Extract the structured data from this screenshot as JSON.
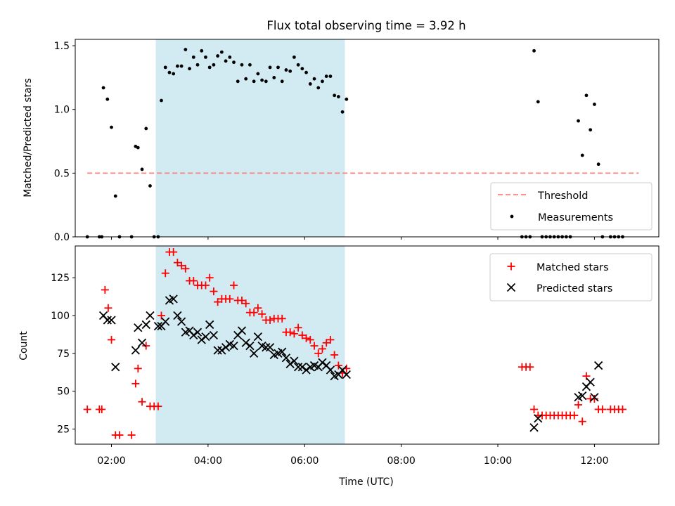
{
  "figure": {
    "title": "Flux total observing time = 3.92 h",
    "xlabel": "Time (UTC)"
  },
  "colors": {
    "shade": "#add8e6",
    "threshold": "#ff7f7f",
    "measurements": "#000000",
    "matched": "#ff0000",
    "predicted": "#000000"
  },
  "chart_data": [
    {
      "type": "scatter",
      "panel": "top",
      "ylabel": "Matched/Predicted stars",
      "xlim": [
        "01:15",
        "13:20"
      ],
      "ylim": [
        0,
        1.55
      ],
      "yticks": [
        0.0,
        0.5,
        1.0,
        1.5
      ],
      "ytick_labels": [
        "0.0",
        "0.5",
        "1.0",
        "1.5"
      ],
      "grid": false,
      "legend_position": "lower right",
      "shaded_span": [
        "02:55",
        "06:50"
      ],
      "threshold": {
        "name": "Threshold",
        "style": "dashed line",
        "value": 0.5,
        "x_range": [
          "01:30",
          "12:55"
        ]
      },
      "series": [
        {
          "name": "Measurements",
          "marker": "dot",
          "points": [
            [
              "01:30",
              0.0
            ],
            [
              "01:45",
              0.0
            ],
            [
              "01:48",
              0.0
            ],
            [
              "01:50",
              1.17
            ],
            [
              "01:55",
              1.08
            ],
            [
              "02:00",
              0.86
            ],
            [
              "02:05",
              0.32
            ],
            [
              "02:10",
              0.0
            ],
            [
              "02:25",
              0.0
            ],
            [
              "02:30",
              0.71
            ],
            [
              "02:33",
              0.7
            ],
            [
              "02:38",
              0.53
            ],
            [
              "02:43",
              0.85
            ],
            [
              "02:48",
              0.4
            ],
            [
              "02:53",
              0.0
            ],
            [
              "02:58",
              0.0
            ],
            [
              "03:02",
              1.07
            ],
            [
              "03:07",
              1.33
            ],
            [
              "03:12",
              1.29
            ],
            [
              "03:17",
              1.28
            ],
            [
              "03:22",
              1.34
            ],
            [
              "03:27",
              1.34
            ],
            [
              "03:32",
              1.47
            ],
            [
              "03:37",
              1.32
            ],
            [
              "03:42",
              1.41
            ],
            [
              "03:47",
              1.35
            ],
            [
              "03:52",
              1.46
            ],
            [
              "03:57",
              1.41
            ],
            [
              "04:02",
              1.33
            ],
            [
              "04:07",
              1.35
            ],
            [
              "04:12",
              1.42
            ],
            [
              "04:17",
              1.45
            ],
            [
              "04:22",
              1.38
            ],
            [
              "04:27",
              1.41
            ],
            [
              "04:32",
              1.37
            ],
            [
              "04:37",
              1.22
            ],
            [
              "04:42",
              1.35
            ],
            [
              "04:47",
              1.24
            ],
            [
              "04:52",
              1.35
            ],
            [
              "04:57",
              1.22
            ],
            [
              "05:02",
              1.28
            ],
            [
              "05:07",
              1.23
            ],
            [
              "05:12",
              1.22
            ],
            [
              "05:17",
              1.33
            ],
            [
              "05:22",
              1.25
            ],
            [
              "05:27",
              1.33
            ],
            [
              "05:32",
              1.22
            ],
            [
              "05:37",
              1.31
            ],
            [
              "05:42",
              1.3
            ],
            [
              "05:47",
              1.41
            ],
            [
              "05:52",
              1.35
            ],
            [
              "05:57",
              1.32
            ],
            [
              "06:02",
              1.29
            ],
            [
              "06:07",
              1.2
            ],
            [
              "06:12",
              1.24
            ],
            [
              "06:17",
              1.17
            ],
            [
              "06:22",
              1.22
            ],
            [
              "06:27",
              1.26
            ],
            [
              "06:32",
              1.26
            ],
            [
              "06:37",
              1.11
            ],
            [
              "06:42",
              1.1
            ],
            [
              "06:47",
              0.98
            ],
            [
              "06:52",
              1.08
            ],
            [
              "10:30",
              0.0
            ],
            [
              "10:35",
              0.0
            ],
            [
              "10:40",
              0.0
            ],
            [
              "10:45",
              1.46
            ],
            [
              "10:50",
              1.06
            ],
            [
              "10:55",
              0.0
            ],
            [
              "11:00",
              0.0
            ],
            [
              "11:05",
              0.0
            ],
            [
              "11:10",
              0.0
            ],
            [
              "11:15",
              0.0
            ],
            [
              "11:20",
              0.0
            ],
            [
              "11:25",
              0.0
            ],
            [
              "11:30",
              0.0
            ],
            [
              "11:40",
              0.91
            ],
            [
              "11:45",
              0.64
            ],
            [
              "11:50",
              1.11
            ],
            [
              "11:55",
              0.84
            ],
            [
              "12:00",
              1.04
            ],
            [
              "12:05",
              0.57
            ],
            [
              "12:10",
              0.0
            ],
            [
              "12:20",
              0.0
            ],
            [
              "12:25",
              0.0
            ],
            [
              "12:30",
              0.0
            ],
            [
              "12:35",
              0.0
            ]
          ]
        }
      ]
    },
    {
      "type": "scatter",
      "panel": "bottom",
      "ylabel": "Count",
      "xlim": [
        "01:15",
        "13:20"
      ],
      "ylim": [
        15,
        146
      ],
      "yticks": [
        25,
        50,
        75,
        100,
        125
      ],
      "ytick_labels": [
        "25",
        "50",
        "75",
        "100",
        "125"
      ],
      "xticks": [
        "02:00",
        "04:00",
        "06:00",
        "08:00",
        "10:00",
        "12:00"
      ],
      "xtick_labels": [
        "02:00",
        "04:00",
        "06:00",
        "08:00",
        "10:00",
        "12:00"
      ],
      "grid": false,
      "legend_position": "upper right",
      "shaded_span": [
        "02:55",
        "06:50"
      ],
      "series": [
        {
          "name": "Matched stars",
          "marker": "plus",
          "points": [
            [
              "01:30",
              38
            ],
            [
              "01:45",
              38
            ],
            [
              "01:48",
              38
            ],
            [
              "01:52",
              117
            ],
            [
              "01:56",
              105
            ],
            [
              "02:00",
              84
            ],
            [
              "02:05",
              21
            ],
            [
              "02:10",
              21
            ],
            [
              "02:25",
              21
            ],
            [
              "02:30",
              55
            ],
            [
              "02:33",
              65
            ],
            [
              "02:38",
              43
            ],
            [
              "02:43",
              80
            ],
            [
              "02:48",
              40
            ],
            [
              "02:53",
              40
            ],
            [
              "02:58",
              40
            ],
            [
              "03:02",
              100
            ],
            [
              "03:07",
              128
            ],
            [
              "03:12",
              142
            ],
            [
              "03:17",
              142
            ],
            [
              "03:22",
              135
            ],
            [
              "03:27",
              133
            ],
            [
              "03:32",
              131
            ],
            [
              "03:37",
              123
            ],
            [
              "03:42",
              123
            ],
            [
              "03:47",
              120
            ],
            [
              "03:52",
              120
            ],
            [
              "03:57",
              120
            ],
            [
              "04:02",
              125
            ],
            [
              "04:07",
              116
            ],
            [
              "04:12",
              109
            ],
            [
              "04:17",
              111
            ],
            [
              "04:22",
              111
            ],
            [
              "04:27",
              111
            ],
            [
              "04:32",
              120
            ],
            [
              "04:37",
              110
            ],
            [
              "04:42",
              110
            ],
            [
              "04:47",
              108
            ],
            [
              "04:52",
              102
            ],
            [
              "04:57",
              102
            ],
            [
              "05:02",
              105
            ],
            [
              "05:07",
              101
            ],
            [
              "05:12",
              97
            ],
            [
              "05:17",
              97
            ],
            [
              "05:22",
              98
            ],
            [
              "05:27",
              98
            ],
            [
              "05:32",
              98
            ],
            [
              "05:37",
              89
            ],
            [
              "05:42",
              89
            ],
            [
              "05:47",
              88
            ],
            [
              "05:52",
              92
            ],
            [
              "05:57",
              87
            ],
            [
              "06:02",
              85
            ],
            [
              "06:07",
              84
            ],
            [
              "06:12",
              80
            ],
            [
              "06:17",
              75
            ],
            [
              "06:22",
              78
            ],
            [
              "06:27",
              82
            ],
            [
              "06:32",
              84
            ],
            [
              "06:37",
              74
            ],
            [
              "06:42",
              67
            ],
            [
              "06:47",
              62
            ],
            [
              "06:52",
              65
            ],
            [
              "10:30",
              66
            ],
            [
              "10:35",
              66
            ],
            [
              "10:40",
              66
            ],
            [
              "10:45",
              38
            ],
            [
              "10:50",
              34
            ],
            [
              "10:55",
              34
            ],
            [
              "11:00",
              34
            ],
            [
              "11:05",
              34
            ],
            [
              "11:10",
              34
            ],
            [
              "11:15",
              34
            ],
            [
              "11:20",
              34
            ],
            [
              "11:25",
              34
            ],
            [
              "11:30",
              34
            ],
            [
              "11:35",
              34
            ],
            [
              "11:40",
              41
            ],
            [
              "11:45",
              30
            ],
            [
              "11:50",
              60
            ],
            [
              "11:55",
              45
            ],
            [
              "12:00",
              45
            ],
            [
              "12:05",
              38
            ],
            [
              "12:10",
              38
            ],
            [
              "12:20",
              38
            ],
            [
              "12:25",
              38
            ],
            [
              "12:30",
              38
            ],
            [
              "12:35",
              38
            ]
          ]
        },
        {
          "name": "Predicted stars",
          "marker": "x",
          "points": [
            [
              "01:50",
              100
            ],
            [
              "01:55",
              97
            ],
            [
              "02:00",
              97
            ],
            [
              "02:05",
              66
            ],
            [
              "02:30",
              77
            ],
            [
              "02:33",
              92
            ],
            [
              "02:38",
              82
            ],
            [
              "02:43",
              94
            ],
            [
              "02:48",
              100
            ],
            [
              "02:58",
              93
            ],
            [
              "03:02",
              93
            ],
            [
              "03:07",
              96
            ],
            [
              "03:12",
              110
            ],
            [
              "03:17",
              111
            ],
            [
              "03:22",
              100
            ],
            [
              "03:27",
              96
            ],
            [
              "03:32",
              89
            ],
            [
              "03:37",
              90
            ],
            [
              "03:42",
              87
            ],
            [
              "03:47",
              89
            ],
            [
              "03:52",
              84
            ],
            [
              "03:57",
              86
            ],
            [
              "04:02",
              94
            ],
            [
              "04:07",
              87
            ],
            [
              "04:12",
              77
            ],
            [
              "04:17",
              77
            ],
            [
              "04:22",
              79
            ],
            [
              "04:27",
              81
            ],
            [
              "04:32",
              80
            ],
            [
              "04:37",
              87
            ],
            [
              "04:42",
              90
            ],
            [
              "04:47",
              82
            ],
            [
              "04:52",
              80
            ],
            [
              "04:57",
              75
            ],
            [
              "05:02",
              86
            ],
            [
              "05:07",
              80
            ],
            [
              "05:12",
              79
            ],
            [
              "05:17",
              79
            ],
            [
              "05:22",
              74
            ],
            [
              "05:27",
              75
            ],
            [
              "05:32",
              76
            ],
            [
              "05:37",
              72
            ],
            [
              "05:42",
              68
            ],
            [
              "05:47",
              70
            ],
            [
              "05:52",
              66
            ],
            [
              "05:57",
              66
            ],
            [
              "06:02",
              64
            ],
            [
              "06:07",
              66
            ],
            [
              "06:12",
              67
            ],
            [
              "06:17",
              66
            ],
            [
              "06:22",
              69
            ],
            [
              "06:27",
              67
            ],
            [
              "06:32",
              64
            ],
            [
              "06:37",
              60
            ],
            [
              "06:42",
              61
            ],
            [
              "06:47",
              64
            ],
            [
              "06:52",
              61
            ],
            [
              "10:45",
              26
            ],
            [
              "10:50",
              32
            ],
            [
              "11:40",
              46
            ],
            [
              "11:45",
              47
            ],
            [
              "11:50",
              53
            ],
            [
              "11:55",
              56
            ],
            [
              "12:00",
              46
            ],
            [
              "12:05",
              67
            ]
          ]
        }
      ]
    }
  ]
}
